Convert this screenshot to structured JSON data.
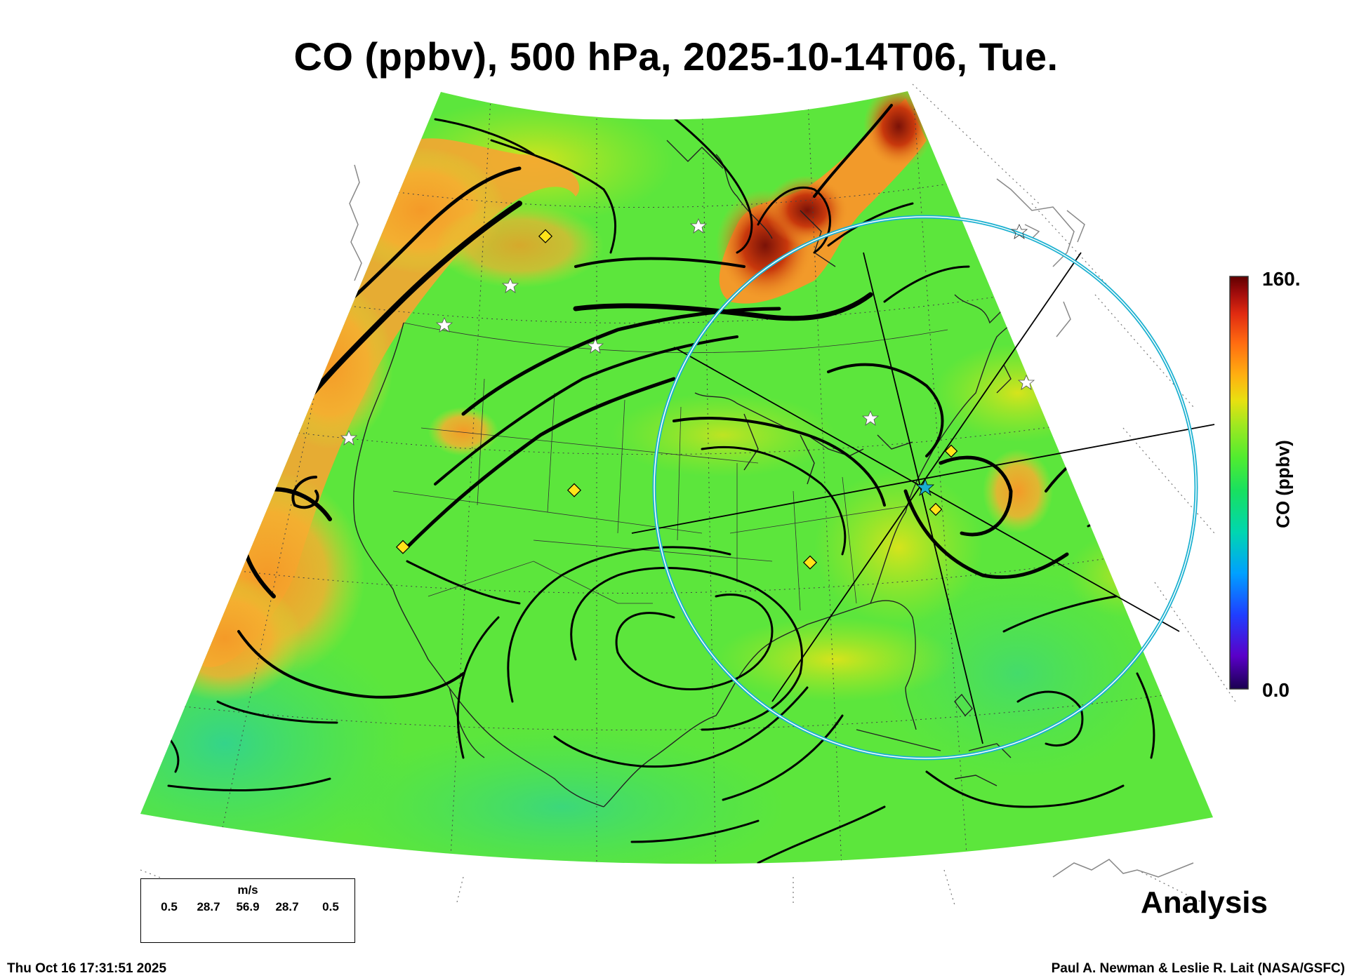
{
  "title": "CO (ppbv), 500 hPa, 2025-10-14T06, Tue.",
  "analysis_label": "Analysis",
  "timestamp": "Thu Oct 16 17:31:51 2025",
  "credit": "Paul A. Newman & Leslie R. Lait (NASA/GSFC)",
  "colorbar": {
    "label": "CO (ppbv)",
    "max_label": "160.",
    "min_label": "0.0",
    "colors": [
      "#3b006b",
      "#5a00c8",
      "#1f3fff",
      "#00a0ff",
      "#00d6b0",
      "#18e060",
      "#50ec30",
      "#a0e820",
      "#e8e010",
      "#ffb010",
      "#ff6a10",
      "#e02a10",
      "#a00c0c",
      "#600000"
    ]
  },
  "wind_legend": {
    "unit": "m/s",
    "values": [
      "0.5",
      "28.7",
      "56.9",
      "28.7",
      "0.5"
    ]
  },
  "map": {
    "background_color": "#5ce63c",
    "high_co_color": "#f4a02a",
    "peak_co_color": "#7a1208",
    "circle_color": "#1ab0d0",
    "marker_color": "#ffe419"
  }
}
